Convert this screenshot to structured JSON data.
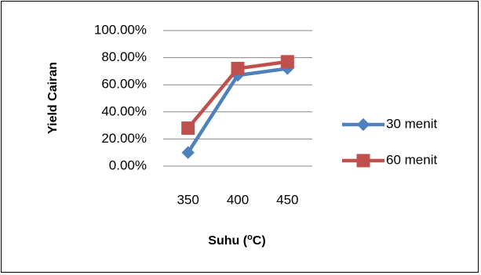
{
  "chart_data": {
    "type": "line",
    "title": "",
    "xlabel": "Suhu (",
    "xlabel_sup": "o",
    "xlabel_suffix": "C)",
    "ylabel": "Yield Cairan",
    "categories": [
      "350",
      "400",
      "450"
    ],
    "ylim": [
      0,
      100
    ],
    "y_ticks": [
      "0.00%",
      "20.00%",
      "40.00%",
      "60.00%",
      "80.00%",
      "100.00%"
    ],
    "grid": true,
    "legend_position": "right",
    "series": [
      {
        "name": "30 menit",
        "values": [
          10,
          67,
          72
        ],
        "color": "#4f81bd",
        "marker": "diamond"
      },
      {
        "name": "60 menit",
        "values": [
          28,
          72,
          77
        ],
        "color": "#c0504d",
        "marker": "square"
      }
    ]
  }
}
